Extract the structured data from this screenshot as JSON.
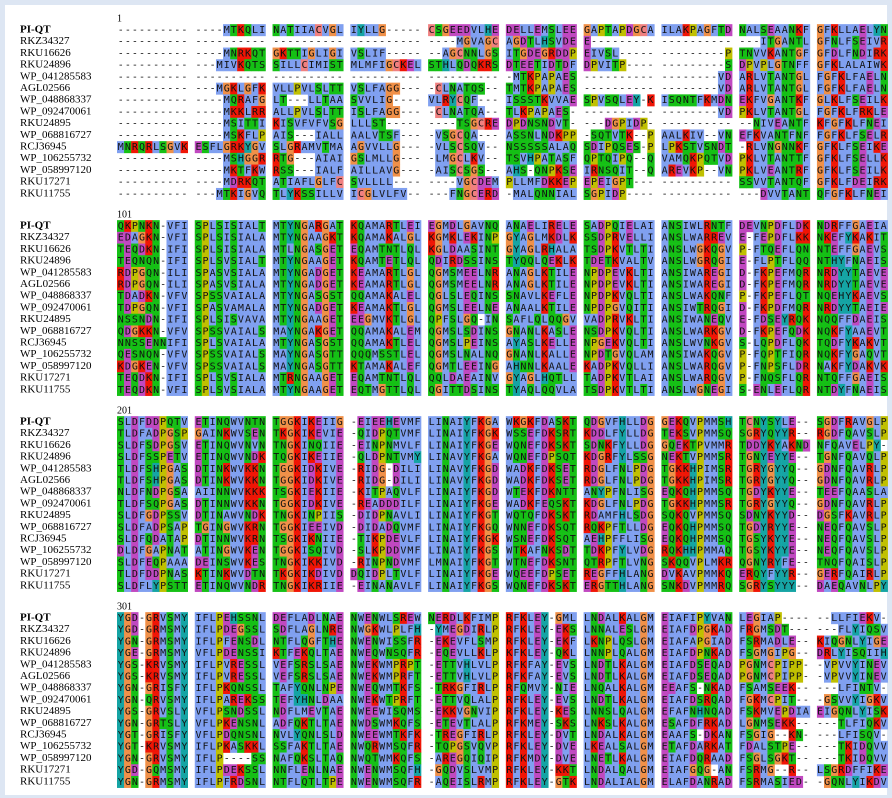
{
  "alignment": {
    "blocks": [
      {
        "start": "1",
        "rows": [
          {
            "name": "PI-QT",
            "seq": "---------- ----MTKQLI NATIIACVGL IYLLG----- CSGEEDVLHE DELLEMSLEE GAPTAPDGCA ILAKPAGFTD NALSEAANKF GFKLLAELYN"
          },
          {
            "name": "RKZ34327",
            "seq": "---------- ---------- ---------- ---------- ----MGVAGC AGDTLHSVDE E--------- ---------- ---ITGANTL GFNLFSEIVR"
          },
          {
            "name": "RKU16626",
            "seq": "---------- ----MNRKQT GKTTIGLIGI VSLIF----- --AGCNNLGS ITGDEGRDDP EIVSL----- ---------P TNVVKANTGF GFDLFNDIRK"
          },
          {
            "name": "RKU24896",
            "seq": "---------- ---MIVKQTS SILLCIMIST MLMFIGCKEL STHLQDQKRS DTEETIDTDF DPVITP---- ---------S DPVPLGTNFF GFKLALAIWK"
          },
          {
            "name": "WP_041285583",
            "seq": "---------- ---------- ---------- ---------- ---------- -MTKPAPAES ---------- --------VD ARLVTANTGL FGFKLFAELN"
          },
          {
            "name": "AGL02566",
            "seq": "---------- ---MGKLGFK VLLPVLSLTT VSLFAGG--- -CLNATQS-- TMTKPAPAES ---------- --------VD ARLVTANTGL FGFKLFAELN"
          },
          {
            "name": "WP_048868337",
            "seq": "---------- ----MQRAFG LT---LLTAA SVVLIG---- VLRYCQF--- ISSSTKVVAE SPVSQLEY-K ISQNTFKMDN EKFVGANTKF GLKLFSEILK"
          },
          {
            "name": "WP_092470061",
            "seq": "---------- ----MKKLRR ALLPVLSLTT ISLFAGG--- -CLNATQA-- TLKPAPAES- ---------- --------VD PKLVTANTGL FGFKLFRKLE"
          },
          {
            "name": "RKU24895",
            "seq": "---------- ----MSITTI KISVFVFVSG LLLST----- ----TSGCRE DPDNSNDVT- ---DGPIDP- ---------- --NIVEANTF KFGFKLFNEI"
          },
          {
            "name": "WP_068816727",
            "seq": "---------- ----MSKFLP AIS---IALL AALVTSF--- -VSGCQA--- ASSNLNDKPP -SQTVTK--P AALKIV--VN EFKVANTFNF FGFKLFSELR"
          },
          {
            "name": "RCJ36945",
            "seq": "MNRQRLSGVK ESFLGRKYGV SLGRAMVTMA AGVVLLG--- -VLSCSQV-- NSSSSSALAQ SDIPQSES-P LPKSTVSNDT -RLVNGNNKF GFKLFSEIKE"
          },
          {
            "name": "WP_106255732",
            "seq": "---------- ----MSHGGR RTG---AIAI GSLMLLG--- -LMGCLKV-- TSVHPATASF QPTQIPQ--Q VAMQKPQTVD PKLVTANTTF GFKLFSELLK"
          },
          {
            "name": "WP_058997120",
            "seq": "---------- ----MKTFKW RSS---IALF AILLAVG--- -AISCSGS-- AHS-QNPKSE IRNSQIT--Q AREVKP--VN PKLVEANTRF GFKLFSEILK"
          },
          {
            "name": "RKU17271",
            "seq": "---------- ----MDRKQT ATIAFLGLFC SVLLLL---- ----VGCDEM PLLMFDKKEP EPEIGPT--- ---------- SSVVTANTQF GFKLFDEIRK"
          },
          {
            "name": "RKU11755",
            "seq": "---------- ---MTKIGVQ TLYKSSILLV ICGLVLFV-- ---FNGCERD -MALQNNIAL SGPIDP---- ---------- ---DVVTANT QFGFKLFNEI"
          }
        ]
      },
      {
        "start": "101",
        "rows": [
          {
            "name": "PI-QT",
            "seq": "QKPNKN-VFI SPLSISIALT MTYNGARGAT KQAMARTLEI EGMDLGAVNQ ANAELIRELE SADPQIELAI ANSIWLRNTF DEVNPDFLDK NDRFFGAEIA"
          },
          {
            "name": "RKZ34327",
            "seq": "EDAGKN-VFI SPLSISIALA MTYNGAAGKT KQAMAKALGL KGMKLEKINP GYAGLMKDLK SSDPRVELLI ANSLWARREV E-FEPDFLKK NKEFYKAKIT"
          },
          {
            "name": "RKU16626",
            "seq": "TEQDKN-IFI SPLSISIALA MTLNGASGET EQAMTNTLQL KGLDAASINT GYAGLRHALA TSDPKVTLTI ANSLWGKQGV P-FTQEFLQN NTEFFGAEVS"
          },
          {
            "name": "RKU24896",
            "seq": "TEQNQN-IFI SPLSVSIALT MTYNGAAGET KQAMTETLQL QDIRDSSINS TYQQLQEKLK TDETKVALTV ANSLWGRQGI E-FLPTFLQQ NTHYFNAEIS"
          },
          {
            "name": "WP_041285583",
            "seq": "RDPGQN-ILI SPASVSIALA MTYNGADGET KEAMARTLGL QGMSMEELNR ANAGLKTILE NPDPEVKLTI ANSIWAREGI D-FKPEFMQR NRDYYTAEVE"
          },
          {
            "name": "AGL02566",
            "seq": "RDPGQN-ILI SPASVSIALA MTYNGADGET KEAMARTLGL QGMSMEELNR ANAGLKTILE NPDPEVKLTI ANSIWAREGI D-FKPEFMQR NRDYYTAEVE"
          },
          {
            "name": "WP_048868337",
            "seq": "TDADKN-VFV SPSSVAIALA MTYNGASGST QQAMAKALEL QGLSLEQINS SNAVLKEFLE NPDPKVQLTI ANSLWAKQNF P-FKPEFLQT NQEHYKAEVS"
          },
          {
            "name": "WP_092470061",
            "seq": "TDPGQN-VFI SPASVAMALA MTYNGADGET KEAMAKTLGL QGMSLEELNE ANAALKTILE NPDPGVQITI ANSIWTRQGI D-FKPDFMQR NRDYYTAEIE"
          },
          {
            "name": "RKU24895",
            "seq": "NSSNDN-IFI SPLSISVAVA MTYNGAAGET EEGMVKTLGL QPFSLGQ-IN SAFLQLQQGV VADPRVKLTI ANSIWANEQV E-FDSEYRQK NQQFFDAEIS"
          },
          {
            "name": "WP_068816727",
            "seq": "QDGKKN-VFV SPSSVAIALS MAYNGAKGET QQAMAKALEM QGMSLSDINS GNANLKASLE NSDPKVQLTI ANSLWARKGV D-FKPEFQDK NQKFYAAEVT"
          },
          {
            "name": "RCJ36945",
            "seq": "NNSSENNIFI SPLSVAIALA MTYNGASGST QQAMAKTLEL QGMSLPEINS AYASLKELLE NPGEKVQLTI ANSLWVNKGV S-LQPDFLQK TQDFYKAKVT"
          },
          {
            "name": "WP_106255732",
            "seq": "QESNQN-VFV SPSSVAIALS MAYNGASGTT QQQMSSTLEL QGMSLNALNQ GNANLKALLE NPDTGVQLAM ANSIWAKQGV P-FQPTFIQR NQKFYGAQVT"
          },
          {
            "name": "WP_058997120",
            "seq": "KDGKEN-VFV SPSSVAIALS MAYNGASGTT KTAMAKALEF QGMTLEEING AHNNLKAALE KADPKVQLLI ANSLWARQGV P-FNPSFLDR NAKFYDAKVK"
          },
          {
            "name": "RKU17271",
            "seq": "TEQDKN-IFI SPLSVSIALA MTRNGAAGET EQAMTNTLQL QQLDAEAINV GYAGLHQTLL TADPKVTLAI ANSLWARQGV P-FNQSFLQR NTQFFGAEIS"
          },
          {
            "name": "RKU11755",
            "seq": "TEQDKN-VFI SPLSVSIALA MTYNGAAGET EQTMGTTLQL QGITTDSINS TYAQLQQVLA TSDPKVTLTI ANSLWGNEGI S-ENLEFLQR NTDYFNAEIS"
          }
        ]
      },
      {
        "start": "201",
        "rows": [
          {
            "name": "PI-QT",
            "seq": "SLDFDDPQTV ETINQWVNTN TGGKIKEIIG -EIEEHEVMF LINAIYFKGA WKGKFDASKT QDGVFHLLDG GEKQVPMMSH TCNYSYLE-- SGDFRAVGLP"
          },
          {
            "name": "RKZ34327",
            "seq": "TLDFADPGSP GAINKWVSEN TKGKIKEVIE -QIDPQTVMF LINAIYFKGK WSSEFDKSRT KDDLFYLLDG TEKSVPMMSQ SGRYQYYR-- RGDFQAVSLP"
          },
          {
            "name": "RKU16626",
            "seq": "SLDFSDPGSV ETINQWVNVN TNGKINQIIE -EINPNMVLF LINAIYFKGE WQNEFDKSKT SDNKFYLLDG GQEKTPVMMR TDDYKYAKND NFQAVELPY-"
          },
          {
            "name": "RKU24896",
            "seq": "SLDFSSPETV ETINQWVNDK TQGKIKEIIE -QLDPNTVMY LINAVYFKGA WQNEFDPSQT KDGRFYLSSG NEKTVPMMSR TGNYEYYE-- TGNFQAVQLP"
          },
          {
            "name": "WP_041285583",
            "seq": "TLDFSHPGAS DTINKWVKKN TGGKIDKIVE -RIDG-DILI LINAVYFKGD WADKFDKSET RDGLFNLPDG TGKKHPIMSR TGRYGYYQ-- GDNFQAVRLP"
          },
          {
            "name": "AGL02566",
            "seq": "TLDFSHPGAS DTINKWVKKN TGGKIDKIVE -RIDG-DILI LINAVYFKGD WADKFDKSET RDGLFNLPDG TGKKHPIMSR TGRYGYYQ-- GDNFQAVRLP"
          },
          {
            "name": "WP_048868337",
            "seq": "NLDFNDPGSA AIINNWVKKK TSGKIEKIIE -KITPAQVLF LINAIYFKGD WTEKFDKNTT ANYPFNLISG EQKQHPMMSQ TGDYKYYE-- TEEFQAASLA"
          },
          {
            "name": "WP_092470061",
            "seq": "TLDFSQPGAS DTINNWVKKN TGGKIDKIVE -READDDILF LINAIYFKGE WADKFEQSKT KDGLFNLPDG TGKKHPMMSR TGRYGYYQ-- GDNFQAVRLP"
          },
          {
            "name": "RKU24895",
            "seq": "SLDFGDPSSV DTINAWVNDK TNGKINPIIS -DIDPNAVLI LINAIYFKGT WQTQFDKSKT RDAMFHLSDG SQKQVPMMSQ SDNYKYYD-- DGSFKAVRLP"
          },
          {
            "name": "WP_068816727",
            "seq": "SLDFADPSAP TGINGWVKRN TGGKIEEIVD -DIDADQVMF LINAIYFKGQ WNNEFDKSQT RQKPFTLLDG EQKQHPMMSQ TGDYRYYE-- NEQFQAVSLP"
          },
          {
            "name": "RCJ36945",
            "seq": "SLDFQDATAP DTINNWVKRN TSGKIKNIIE -TIKPDEVLF LINAIYFKGK WSNEFDKSQT AEHPFFLISG EQKQHPMMSQ TGSYKYYE-- NEQFQAVSLP"
          },
          {
            "name": "WP_106255732",
            "seq": "DLDFGAPNAT ATINGWVKEN TGGKISQIVD -SLKPDDVMF LINAIYFKGS WTKAFNKSDT TDKPFYLVDG RQKHHPMMAQ TGSYKYYE-- NEQFQAVSLP"
          },
          {
            "name": "WP_058997120",
            "seq": "SLDFEQPAAA DEINSWVKES TNGKIKKIVD -RINPNDVMF LMNAIYFKGT WTNEFDKSNT QTRPFTLVNG SKQQVPLMKR QGNYRYFE-- TNQFQAISLP"
          },
          {
            "name": "RKU17271",
            "seq": "TLDFDDPNAS KTINKWVDTN TKGKIKDIVD DQIDPLTVLF LINAIYFKGE WQEEFDPSET REGFFHLANG DVKAVPMMKQ ERQYFYYR-- GERFQAIRLP"
          },
          {
            "name": "RKU11755",
            "seq": "SLDFLYPSTT ETINQWVNDR TNGKIKRIIE -EINANAVLF LINAIYFKGS WQNEFDKSKT ERGTTHLANG SNKDVPMMRQ SGRYSYYY-- DAEQAVNLPY"
          }
        ]
      },
      {
        "start": "301",
        "rows": [
          {
            "name": "PI-QT",
            "seq": "YGD-GRVSMY IFLPEHSSNL DEFLADLNAE NWENWLSREW NERDLKFIMP RFKLEY-GML LNDALKALGM EIAFIPYVAN LEGIAP---- --LLFIEKV-"
          },
          {
            "name": "RKZ34327",
            "seq": "YGD-GRMSMY IFLPDEGSSL SDFLAGLNRE NWGKWLPLFH -YMEGDIRLP RFKLEY-EKS LNNALESLGM EIAFDPGKAD FRGMSDT--- ---FLYIQSV"
          },
          {
            "name": "RKU16626",
            "seq": "YGN-GRMSMY IFLPFENSDL NTFLQGFTHE NWENWISSFR -EKEVFLSMP RFKLEY-EKF LKNPLQSLGM EIAFAPGIAD FSRMADLE-- KIQGNLYIGE"
          },
          {
            "name": "RKU24896",
            "seq": "YGE-GRMSMY VFLPDENSSI KTFEKQLTAE NWEQWNSQFR -EQEVLLKLP KFKLEY-QKL LNNPLQALGM EIAFDPNKAD FSGMGIPG-- DRLYISQIIH"
          },
          {
            "name": "WP_041285583",
            "seq": "YGS-KRVSMY IFLPVRESSL VEFSRSLSAE NWEKWMPRPT -ETTVHLVLP RFKFAY-EVS LNDTLKALGM EIAFDSEQAD PGNMCPIPP- -VPVVYINEV"
          },
          {
            "name": "AGL02566",
            "seq": "YGS-KRVSMY IFLPVRESSL VEFSRSLSAE NWEKWMPRFT -ETTVHLVLP RFKFAY-EVS LNDTLKALGM EIAFDSEQAD PGNMCPIPP- -VPVVYINEV"
          },
          {
            "name": "WP_048868337",
            "seq": "YGN-GRISFY IFLPKQNSSL TAFYQNLNPE NWEQWMTKFS -TRKGFIRLP RFQMVY-NIE LNQALKALGM EEAFS-NKAD FSAMSEEK-- ---LFINTV-"
          },
          {
            "name": "WP_092470061",
            "seq": "YGN-QRVSMY IFLPAREKSS TEFYHNLDAA NWEKWTPRFT -ETTVQLALP RFKLEY-EVS LNDTLKALGM EIAFDSRQAD FGKMCPIT-- -GSVVYIGKV"
          },
          {
            "name": "RKU24895",
            "seq": "YGS-GRVSLY VFLPSNDSSL NDFLMEVTAE NWEEWISQMS -EKKVGNVIP RFKLEY-KES LNNSLQALGM EFAFNHNQAD FSKMVEPDIA EIGQNLYISK"
          },
          {
            "name": "WP_068816727",
            "seq": "YGN-GRTSLY VFLPKENSNL ADFQKTLTAE NWDSWMKQFS -ETEVTLALP RFKMEY-SKS LNKSLKALGM ESAFDFRKAD LGNMSEKK-- ---TLFIQKV"
          },
          {
            "name": "RCJ36945",
            "seq": "YGT-GRISFY VFLPDQNSNL NVLYQNLSLD NWEEWMTKFK -TREGFIRLP RFKLEY-DVT LNDALKALGM EAAFS-DKAN FSGIG--KN- ---LFISQV-"
          },
          {
            "name": "WP_106255732",
            "seq": "YGT-KRVSMY IFLPKASKKL SSFAKTLTAE NWQRWMSQFR -TQPGSVQVP RFKLEY-DVE LKEALSALGM ETAFDARKAT FDALSTPE-- ---TKIDQVV"
          },
          {
            "name": "WP_058997120",
            "seq": "YGN-GRVSMY IFLP----SS NAFQKSLTAQ NWQTWMKQFS -AREGQIQIP RFKMDY-DVE LNETLKALGM EIAFDQRAAD FSGLSGKT-- ---TKIDQVV"
          },
          {
            "name": "RKU17271",
            "seq": "YGD-GQMSMY IFLPDEKSSL NNFLENLNAE NWENWMSQFH -GQDVSLVMP RFKLEY-KKT LNDALQALGM EIAFGQG-AN FSRMG--R-- LSGRDFFIKE"
          },
          {
            "name": "RKU11755",
            "seq": "YGN-GRMSMY IFLPFRDSNL NTFLQTLTPE NWENWMSQFR -AQEISLRMP RFKLEY-GTK LNDALIALGM ELAFDANRAD FSRMASIED- -GQNLYIKDV"
          }
        ]
      }
    ]
  }
}
